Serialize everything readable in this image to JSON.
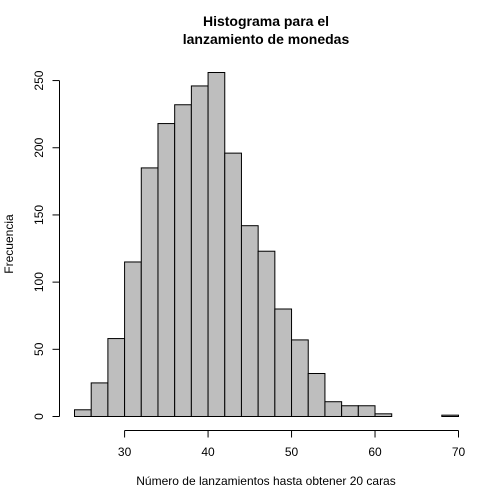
{
  "chart_data": {
    "type": "bar",
    "title_line1": "Histograma para el",
    "title_line2": "lanzamiento de monedas",
    "xlabel": "Número de lanzamientos hasta obtener 20 caras",
    "ylabel": "Frecuencia",
    "bin_width": 2,
    "bins_start": [
      24,
      26,
      28,
      30,
      32,
      34,
      36,
      38,
      40,
      42,
      44,
      46,
      48,
      50,
      52,
      54,
      56,
      58,
      60,
      62,
      64,
      66,
      68
    ],
    "values": [
      5,
      25,
      58,
      115,
      185,
      218,
      232,
      246,
      256,
      196,
      142,
      123,
      80,
      57,
      32,
      11,
      8,
      8,
      2,
      0,
      0,
      0,
      1
    ],
    "xlim": [
      24,
      70
    ],
    "ylim": [
      0,
      256
    ],
    "x_ticks": [
      30,
      40,
      50,
      60,
      70
    ],
    "y_ticks": [
      0,
      50,
      100,
      150,
      200,
      250
    ],
    "grid": false,
    "bar_fill": "#bebebe",
    "bar_stroke": "#000000"
  }
}
